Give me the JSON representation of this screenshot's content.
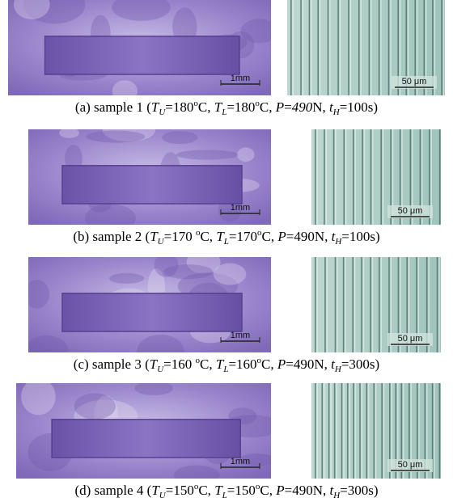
{
  "figures": [
    {
      "left_scale": "1mm",
      "right_scale": "50 μm",
      "caption": [
        {
          "text": "(a) sample 1 ("
        },
        {
          "text": "T",
          "style": "i"
        },
        {
          "text": "U",
          "style": "isub"
        },
        {
          "text": "=180"
        },
        {
          "text": "o",
          "style": "sup"
        },
        {
          "text": "C, "
        },
        {
          "text": "T",
          "style": "i"
        },
        {
          "text": "L",
          "style": "isub"
        },
        {
          "text": "=180"
        },
        {
          "text": "o",
          "style": "sup"
        },
        {
          "text": "C, "
        },
        {
          "text": "P",
          "style": "i"
        },
        {
          "text": "="
        },
        {
          "text": "490",
          "style": "i"
        },
        {
          "text": "N, "
        },
        {
          "text": "t",
          "style": "i"
        },
        {
          "text": "H",
          "style": "isub"
        },
        {
          "text": "=100s)"
        }
      ]
    },
    {
      "left_scale": "1mm",
      "right_scale": "50 μm",
      "caption": [
        {
          "text": "(b) sample 2 ("
        },
        {
          "text": "T",
          "style": "i"
        },
        {
          "text": "U",
          "style": "isub"
        },
        {
          "text": "=170 "
        },
        {
          "text": "o",
          "style": "sup"
        },
        {
          "text": "C, "
        },
        {
          "text": "T",
          "style": "i"
        },
        {
          "text": "L",
          "style": "isub"
        },
        {
          "text": "=170"
        },
        {
          "text": "o",
          "style": "sup"
        },
        {
          "text": "C, "
        },
        {
          "text": "P",
          "style": "i"
        },
        {
          "text": "=490N, "
        },
        {
          "text": "t",
          "style": "i"
        },
        {
          "text": "H",
          "style": "isub"
        },
        {
          "text": "=100s)"
        }
      ]
    },
    {
      "left_scale": "1mm",
      "right_scale": "50 μm",
      "caption": [
        {
          "text": "(c) sample 3 ("
        },
        {
          "text": "T",
          "style": "i"
        },
        {
          "text": "U",
          "style": "isub"
        },
        {
          "text": "=160 "
        },
        {
          "text": "o",
          "style": "sup"
        },
        {
          "text": "C, "
        },
        {
          "text": "T",
          "style": "i"
        },
        {
          "text": "L",
          "style": "isub"
        },
        {
          "text": "=160"
        },
        {
          "text": "o",
          "style": "sup"
        },
        {
          "text": "C, "
        },
        {
          "text": "P",
          "style": "i"
        },
        {
          "text": "=490N, "
        },
        {
          "text": "t",
          "style": "i"
        },
        {
          "text": "H",
          "style": "isub"
        },
        {
          "text": "=300s)"
        }
      ]
    },
    {
      "left_scale": "1mm",
      "right_scale": "50 μm",
      "caption": [
        {
          "text": "(d) sample 4 ("
        },
        {
          "text": "T",
          "style": "i"
        },
        {
          "text": "U",
          "style": "isub"
        },
        {
          "text": "=150"
        },
        {
          "text": "o",
          "style": "sup"
        },
        {
          "text": "C, "
        },
        {
          "text": "T",
          "style": "i"
        },
        {
          "text": "L",
          "style": "isub"
        },
        {
          "text": "=150"
        },
        {
          "text": "o",
          "style": "sup"
        },
        {
          "text": "C, "
        },
        {
          "text": "P",
          "style": "i"
        },
        {
          "text": "=490N, "
        },
        {
          "text": "t",
          "style": "i"
        },
        {
          "text": "H",
          "style": "isub"
        },
        {
          "text": "=300s)"
        }
      ]
    }
  ]
}
